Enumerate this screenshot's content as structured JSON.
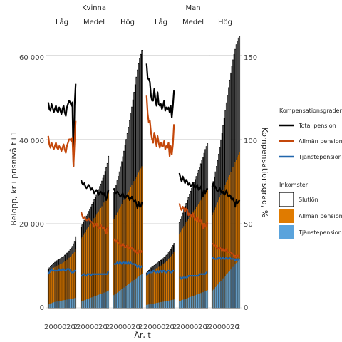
{
  "chart_data": {
    "type": "bar",
    "gender_labels": [
      "Kvinna",
      "Man"
    ],
    "income_labels": [
      "Låg",
      "Medel",
      "Hög"
    ],
    "y_left": {
      "label": "Belopp, kr i prisnivå t+1",
      "ticks": [
        0,
        20000,
        40000,
        60000
      ],
      "tick_labels": [
        "0",
        "20 000",
        "40 000",
        "60 000"
      ],
      "ylim": [
        0,
        66000
      ]
    },
    "y_right": {
      "label": "Kompensationsgrad, %",
      "ticks": [
        0,
        50,
        100,
        150
      ],
      "tick_labels": [
        "0",
        "50",
        "100",
        "150"
      ],
      "ylim": [
        0,
        165
      ]
    },
    "xlabel": "År, t",
    "x_tick_labels": [
      "2000",
      "2010",
      "2020"
    ],
    "x_tick_years": [
      2000,
      2010,
      2020
    ],
    "x_tick_display": [
      "200",
      "0",
      "0",
      "20",
      "2"
    ],
    "x": [
      1997,
      1998,
      1999,
      2000,
      2001,
      2002,
      2003,
      2004,
      2005,
      2006,
      2007,
      2008,
      2009,
      2010,
      2011,
      2012,
      2013,
      2014,
      2015,
      2016,
      2017,
      2018,
      2019,
      2020,
      2021,
      2022
    ],
    "legend_bars_title": "Inkomster",
    "legend_lines_title": "Kompensationsgrader",
    "series_bars": [
      {
        "name": "Slutlön",
        "color": "#ffffff",
        "edge": "#000000"
      },
      {
        "name": "Allmän pension",
        "color": "#e07b00"
      },
      {
        "name": "Tjänstepension",
        "color": "#5aa3dc"
      }
    ],
    "series_lines": [
      {
        "name": "Total pension",
        "color": "#000000"
      },
      {
        "name": "Allmän pension",
        "color": "#c4470a"
      },
      {
        "name": "Tjänstepension",
        "color": "#2166ac"
      }
    ],
    "panels": [
      {
        "gender": "Kvinna",
        "income": "Låg",
        "slutlon": [
          9200,
          9500,
          9800,
          10100,
          10400,
          10600,
          10800,
          11000,
          11200,
          11400,
          11500,
          11700,
          11900,
          12000,
          12200,
          12500,
          12700,
          13000,
          13200,
          13500,
          13800,
          14200,
          14600,
          15200,
          15800,
          16900
        ],
        "allman": [
          8500,
          8700,
          9000,
          9200,
          9400,
          9500,
          9700,
          9800,
          10000,
          10100,
          10200,
          10400,
          10500,
          10600,
          10800,
          11000,
          11200,
          11400,
          11600,
          11900,
          12100,
          12400,
          12700,
          13000,
          13300,
          14000
        ],
        "tjanste": [
          800,
          900,
          1000,
          1100,
          1200,
          1300,
          1400,
          1450,
          1500,
          1550,
          1600,
          1650,
          1700,
          1750,
          1800,
          1850,
          1900,
          1950,
          2000,
          2050,
          2100,
          2150,
          2200,
          2250,
          2300,
          2400
        ],
        "total_pct": [
          122,
          118,
          117,
          121,
          119,
          116,
          118,
          120,
          117,
          116,
          119,
          117,
          115,
          118,
          120,
          116,
          114,
          119,
          121,
          123,
          122,
          120,
          122,
          84,
          120,
          133
        ],
        "allman_pct": [
          102,
          97,
          95,
          98,
          96,
          94,
          96,
          98,
          95,
          94,
          96,
          95,
          93,
          95,
          97,
          94,
          92,
          96,
          98,
          100,
          100,
          99,
          101,
          84,
          98,
          111
        ],
        "tjanste_pct": [
          20,
          21,
          22,
          23,
          22,
          22,
          22,
          22,
          22,
          22,
          23,
          22,
          22,
          23,
          23,
          22,
          22,
          23,
          23,
          23,
          22,
          21,
          21,
          21,
          22,
          22
        ]
      },
      {
        "gender": "Kvinna",
        "income": "Medel",
        "slutlon": [
          19200,
          19700,
          20300,
          20800,
          21300,
          21800,
          22300,
          22900,
          23400,
          24000,
          24500,
          25100,
          25700,
          26300,
          26900,
          27500,
          28100,
          28800,
          29400,
          30100,
          30800,
          31600,
          32400,
          33300,
          34300,
          36000
        ],
        "allman": [
          16500,
          16900,
          17300,
          17700,
          18100,
          18500,
          18900,
          19300,
          19700,
          20100,
          20500,
          20900,
          21300,
          21700,
          22100,
          22500,
          22900,
          23300,
          23700,
          24100,
          24500,
          25000,
          25500,
          26000,
          26500,
          27500
        ],
        "tjanste": [
          1500,
          1600,
          1700,
          1800,
          1900,
          2000,
          2100,
          2200,
          2300,
          2400,
          2500,
          2600,
          2700,
          2800,
          2900,
          3000,
          3100,
          3200,
          3300,
          3400,
          3500,
          3600,
          3700,
          3800,
          3900,
          4100
        ],
        "total_pct": [
          76,
          74,
          73,
          74,
          72,
          71,
          72,
          73,
          72,
          70,
          71,
          70,
          68,
          69,
          70,
          69,
          67,
          68,
          69,
          68,
          67,
          68,
          66,
          64,
          67,
          70
        ],
        "allman_pct": [
          57,
          55,
          53,
          54,
          53,
          52,
          52,
          53,
          52,
          51,
          51,
          50,
          48,
          49,
          50,
          49,
          47,
          48,
          49,
          48,
          47,
          48,
          46,
          44,
          47,
          48
        ],
        "tjanste_pct": [
          19,
          19,
          20,
          20,
          19,
          19,
          20,
          20,
          20,
          19,
          20,
          20,
          20,
          20,
          20,
          20,
          20,
          20,
          20,
          20,
          20,
          20,
          20,
          20,
          20,
          22
        ]
      },
      {
        "gender": "Kvinna",
        "income": "Hög",
        "slutlon": [
          27500,
          28300,
          29200,
          30200,
          31200,
          32300,
          33500,
          34700,
          35900,
          37200,
          38600,
          40000,
          41400,
          42900,
          44500,
          46100,
          47700,
          49400,
          51200,
          53000,
          54800,
          56500,
          58000,
          59200,
          60200,
          61200
        ],
        "allman": [
          21000,
          21500,
          22000,
          22600,
          23100,
          23600,
          24100,
          24600,
          25100,
          25600,
          26100,
          26600,
          27100,
          27600,
          28100,
          28600,
          29100,
          29600,
          30100,
          30600,
          31100,
          31600,
          32100,
          32600,
          33100,
          33600
        ],
        "tjanste": [
          3000,
          3200,
          3400,
          3600,
          3800,
          4000,
          4200,
          4400,
          4600,
          4800,
          5000,
          5200,
          5400,
          5600,
          5800,
          6000,
          6200,
          6400,
          6600,
          6800,
          7000,
          7200,
          7400,
          7600,
          7800,
          8000
        ],
        "total_pct": [
          71,
          69,
          68,
          69,
          68,
          67,
          66,
          67,
          68,
          66,
          65,
          66,
          67,
          66,
          64,
          65,
          66,
          64,
          63,
          64,
          62,
          59,
          63,
          60,
          60,
          63
        ],
        "allman_pct": [
          41,
          40,
          39,
          40,
          39,
          38,
          37,
          37,
          38,
          37,
          36,
          36,
          37,
          36,
          35,
          35,
          36,
          35,
          34,
          34,
          33,
          32,
          34,
          33,
          33,
          34
        ],
        "tjanste_pct": [
          26,
          26,
          26,
          27,
          26,
          27,
          27,
          26,
          27,
          27,
          26,
          27,
          26,
          27,
          26,
          27,
          26,
          26,
          26,
          26,
          25,
          24,
          25,
          24,
          24,
          25
        ]
      },
      {
        "gender": "Man",
        "income": "Låg",
        "slutlon": [
          8300,
          8600,
          8900,
          9200,
          9500,
          9700,
          9900,
          10100,
          10300,
          10500,
          10700,
          10900,
          11100,
          11300,
          11500,
          11700,
          12000,
          12200,
          12500,
          12800,
          13100,
          13500,
          13900,
          14300,
          14800,
          15300
        ],
        "allman": [
          7600,
          7800,
          8100,
          8300,
          8500,
          8700,
          8900,
          9000,
          9200,
          9400,
          9500,
          9700,
          9800,
          10000,
          10200,
          10400,
          10600,
          10800,
          11000,
          11200,
          11500,
          11800,
          12100,
          12400,
          12700,
          13200
        ],
        "tjanste": [
          700,
          750,
          800,
          850,
          900,
          950,
          1000,
          1050,
          1100,
          1150,
          1200,
          1250,
          1300,
          1350,
          1400,
          1450,
          1500,
          1550,
          1600,
          1650,
          1700,
          1750,
          1800,
          1850,
          1900,
          2000
        ],
        "total_pct": [
          145,
          136,
          136,
          134,
          126,
          123,
          123,
          130,
          124,
          120,
          128,
          121,
          120,
          121,
          118,
          120,
          123,
          117,
          119,
          118,
          119,
          116,
          120,
          113,
          120,
          129
        ],
        "allman_pct": [
          126,
          115,
          110,
          111,
          104,
          100,
          98,
          104,
          101,
          96,
          102,
          98,
          95,
          98,
          96,
          96,
          99,
          94,
          96,
          95,
          98,
          90,
          96,
          91,
          97,
          109
        ],
        "tjanste_pct": [
          20,
          20,
          21,
          21,
          21,
          21,
          22,
          22,
          21,
          21,
          22,
          21,
          22,
          22,
          21,
          22,
          22,
          21,
          21,
          22,
          22,
          22,
          21,
          21,
          22,
          22
        ]
      },
      {
        "gender": "Man",
        "income": "Medel",
        "slutlon": [
          20300,
          21000,
          21700,
          22500,
          23300,
          24100,
          24800,
          25500,
          26200,
          27000,
          27700,
          28400,
          29100,
          29800,
          30500,
          31200,
          31900,
          32600,
          33400,
          34200,
          35000,
          35800,
          36700,
          37600,
          38300,
          39000
        ],
        "allman": [
          17500,
          17900,
          18400,
          18900,
          19400,
          19900,
          20300,
          20700,
          21100,
          21500,
          21900,
          22300,
          22700,
          23100,
          23500,
          23900,
          24300,
          24700,
          25100,
          25500,
          25900,
          26300,
          26700,
          27100,
          27500,
          28000
        ],
        "tjanste": [
          1600,
          1700,
          1800,
          1900,
          2000,
          2100,
          2200,
          2300,
          2400,
          2500,
          2600,
          2700,
          2800,
          2900,
          3000,
          3100,
          3200,
          3300,
          3400,
          3500,
          3600,
          3700,
          3800,
          3900,
          4000,
          4200
        ],
        "total_pct": [
          80,
          77,
          75,
          78,
          76,
          74,
          76,
          75,
          73,
          74,
          72,
          73,
          74,
          72,
          71,
          72,
          73,
          70,
          71,
          72,
          70,
          66,
          70,
          68,
          70,
          71
        ],
        "allman_pct": [
          62,
          59,
          58,
          60,
          59,
          57,
          59,
          58,
          55,
          56,
          54,
          55,
          56,
          54,
          52,
          53,
          54,
          51,
          51,
          52,
          50,
          47,
          50,
          48,
          49,
          51
        ],
        "tjanste_pct": [
          18,
          18,
          17,
          18,
          18,
          18,
          18,
          18,
          19,
          19,
          19,
          19,
          19,
          19,
          19,
          19,
          19,
          19,
          20,
          20,
          20,
          20,
          20,
          20,
          21,
          21
        ]
      },
      {
        "gender": "Man",
        "income": "Hög",
        "slutlon": [
          29000,
          30000,
          31100,
          32300,
          33600,
          35000,
          36500,
          38100,
          39800,
          41500,
          43300,
          45100,
          46900,
          48700,
          50500,
          52300,
          54100,
          55800,
          57400,
          58900,
          60200,
          61400,
          62500,
          63400,
          64100,
          64500
        ],
        "allman": [
          22000,
          22600,
          23200,
          23800,
          24400,
          25000,
          25600,
          26200,
          26800,
          27400,
          28000,
          28600,
          29200,
          29800,
          30400,
          31000,
          31600,
          32200,
          32800,
          33400,
          34000,
          34600,
          35200,
          35800,
          36400,
          37000
        ],
        "tjanste": [
          4000,
          4300,
          4600,
          4900,
          5200,
          5500,
          5800,
          6100,
          6400,
          6700,
          7000,
          7300,
          7600,
          7900,
          8200,
          8500,
          8800,
          9100,
          9400,
          9700,
          10000,
          10300,
          10600,
          10900,
          11200,
          11500
        ],
        "total_pct": [
          72,
          74,
          71,
          72,
          70,
          69,
          70,
          71,
          69,
          68,
          69,
          67,
          68,
          70,
          67,
          66,
          67,
          66,
          64,
          65,
          63,
          60,
          64,
          62,
          63,
          64
        ],
        "allman_pct": [
          38,
          38,
          37,
          37,
          36,
          35,
          35,
          36,
          35,
          34,
          35,
          34,
          34,
          35,
          33,
          33,
          33,
          33,
          32,
          32,
          31,
          30,
          31,
          31,
          31,
          31
        ],
        "tjanste_pct": [
          29,
          30,
          29,
          29,
          29,
          29,
          30,
          30,
          29,
          29,
          30,
          29,
          29,
          30,
          29,
          29,
          30,
          29,
          29,
          29,
          29,
          28,
          29,
          28,
          29,
          29
        ]
      }
    ]
  }
}
